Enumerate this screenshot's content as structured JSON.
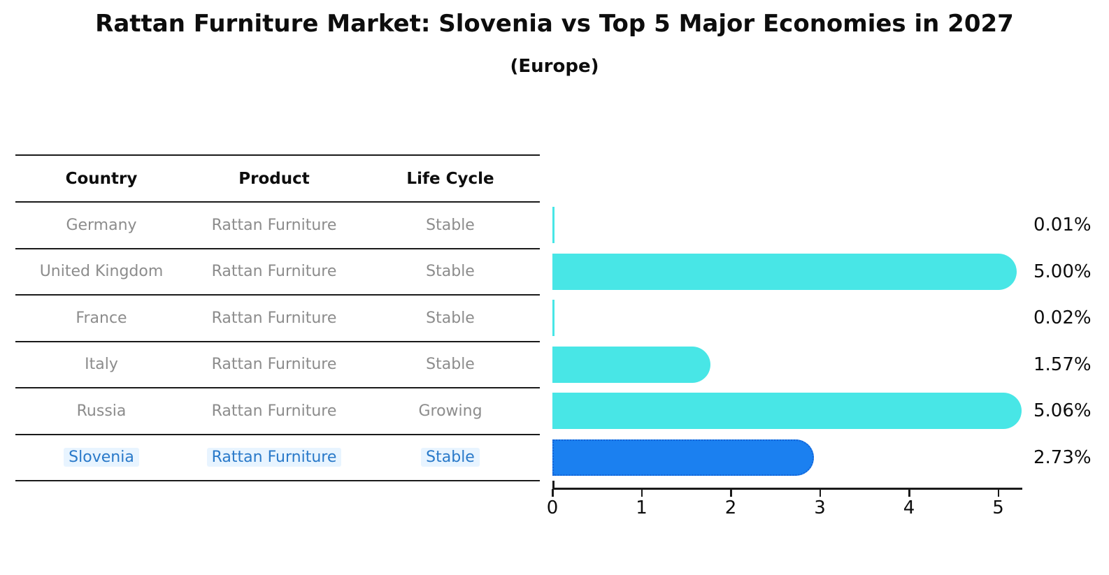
{
  "title": "Rattan Furniture Market: Slovenia vs Top 5 Major Economies in 2027",
  "subtitle": "(Europe)",
  "table": {
    "headers": [
      "Country",
      "Product",
      "Life Cycle"
    ],
    "rows": [
      {
        "country": "Germany",
        "product": "Rattan Furniture",
        "life_cycle": "Stable",
        "highlight": false
      },
      {
        "country": "United Kingdom",
        "product": "Rattan Furniture",
        "life_cycle": "Stable",
        "highlight": false
      },
      {
        "country": "France",
        "product": "Rattan Furniture",
        "life_cycle": "Stable",
        "highlight": false
      },
      {
        "country": "Italy",
        "product": "Rattan Furniture",
        "life_cycle": "Stable",
        "highlight": false
      },
      {
        "country": "Russia",
        "product": "Rattan Furniture",
        "life_cycle": "Growing",
        "highlight": false
      },
      {
        "country": "Slovenia",
        "product": "Rattan Furniture",
        "life_cycle": "Stable",
        "highlight": true
      }
    ]
  },
  "chart_data": {
    "type": "bar",
    "orientation": "horizontal",
    "title": "Rattan Furniture Market: Slovenia vs Top 5 Major Economies in 2027 (Europe)",
    "categories": [
      "Germany",
      "United Kingdom",
      "France",
      "Italy",
      "Russia",
      "Slovenia"
    ],
    "values": [
      0.01,
      5.0,
      0.02,
      1.57,
      5.06,
      2.73
    ],
    "value_labels": [
      "0.01%",
      "5.00%",
      "0.02%",
      "1.57%",
      "5.06%",
      "2.73%"
    ],
    "xlabel": "",
    "ylabel": "",
    "xlim": [
      0,
      5.3
    ],
    "x_ticks": [
      "0",
      "1",
      "2",
      "3",
      "4",
      "5"
    ],
    "grid": false,
    "legend": false,
    "highlight_index": 5
  },
  "colors": {
    "bar": "#48e6e6",
    "highlight_bar": "#1b80f0",
    "highlight_border": "#1463d6",
    "text_dark": "#0d0d0d",
    "text_gray": "#8c8c8c",
    "text_highlight": "#2979c9",
    "line": "#1a1a1a"
  }
}
